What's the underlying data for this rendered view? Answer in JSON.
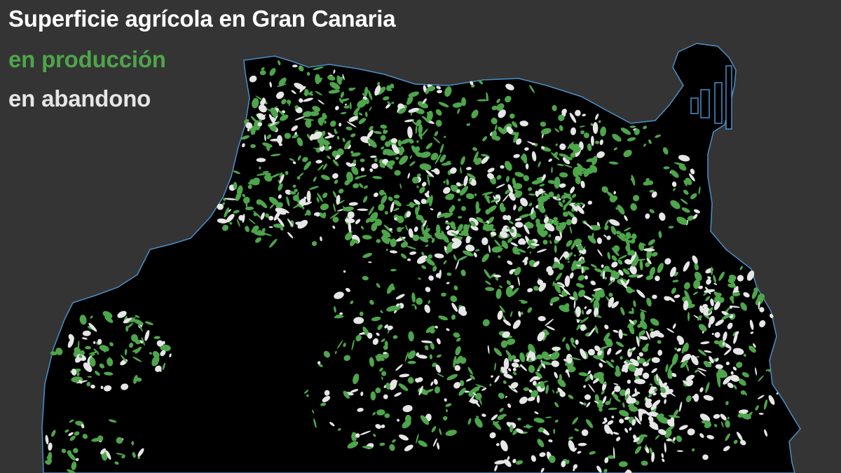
{
  "legend": {
    "title": "Superficie agrícola en Gran Canaria",
    "production_label": "en producción",
    "abandoned_label": "en abandono"
  },
  "colors": {
    "background": "#343434",
    "island": "#000000",
    "coastline": "#4a90c8",
    "title_text": "#ffffff",
    "production": "#4ea54b",
    "abandoned": "#e6e6e6"
  }
}
